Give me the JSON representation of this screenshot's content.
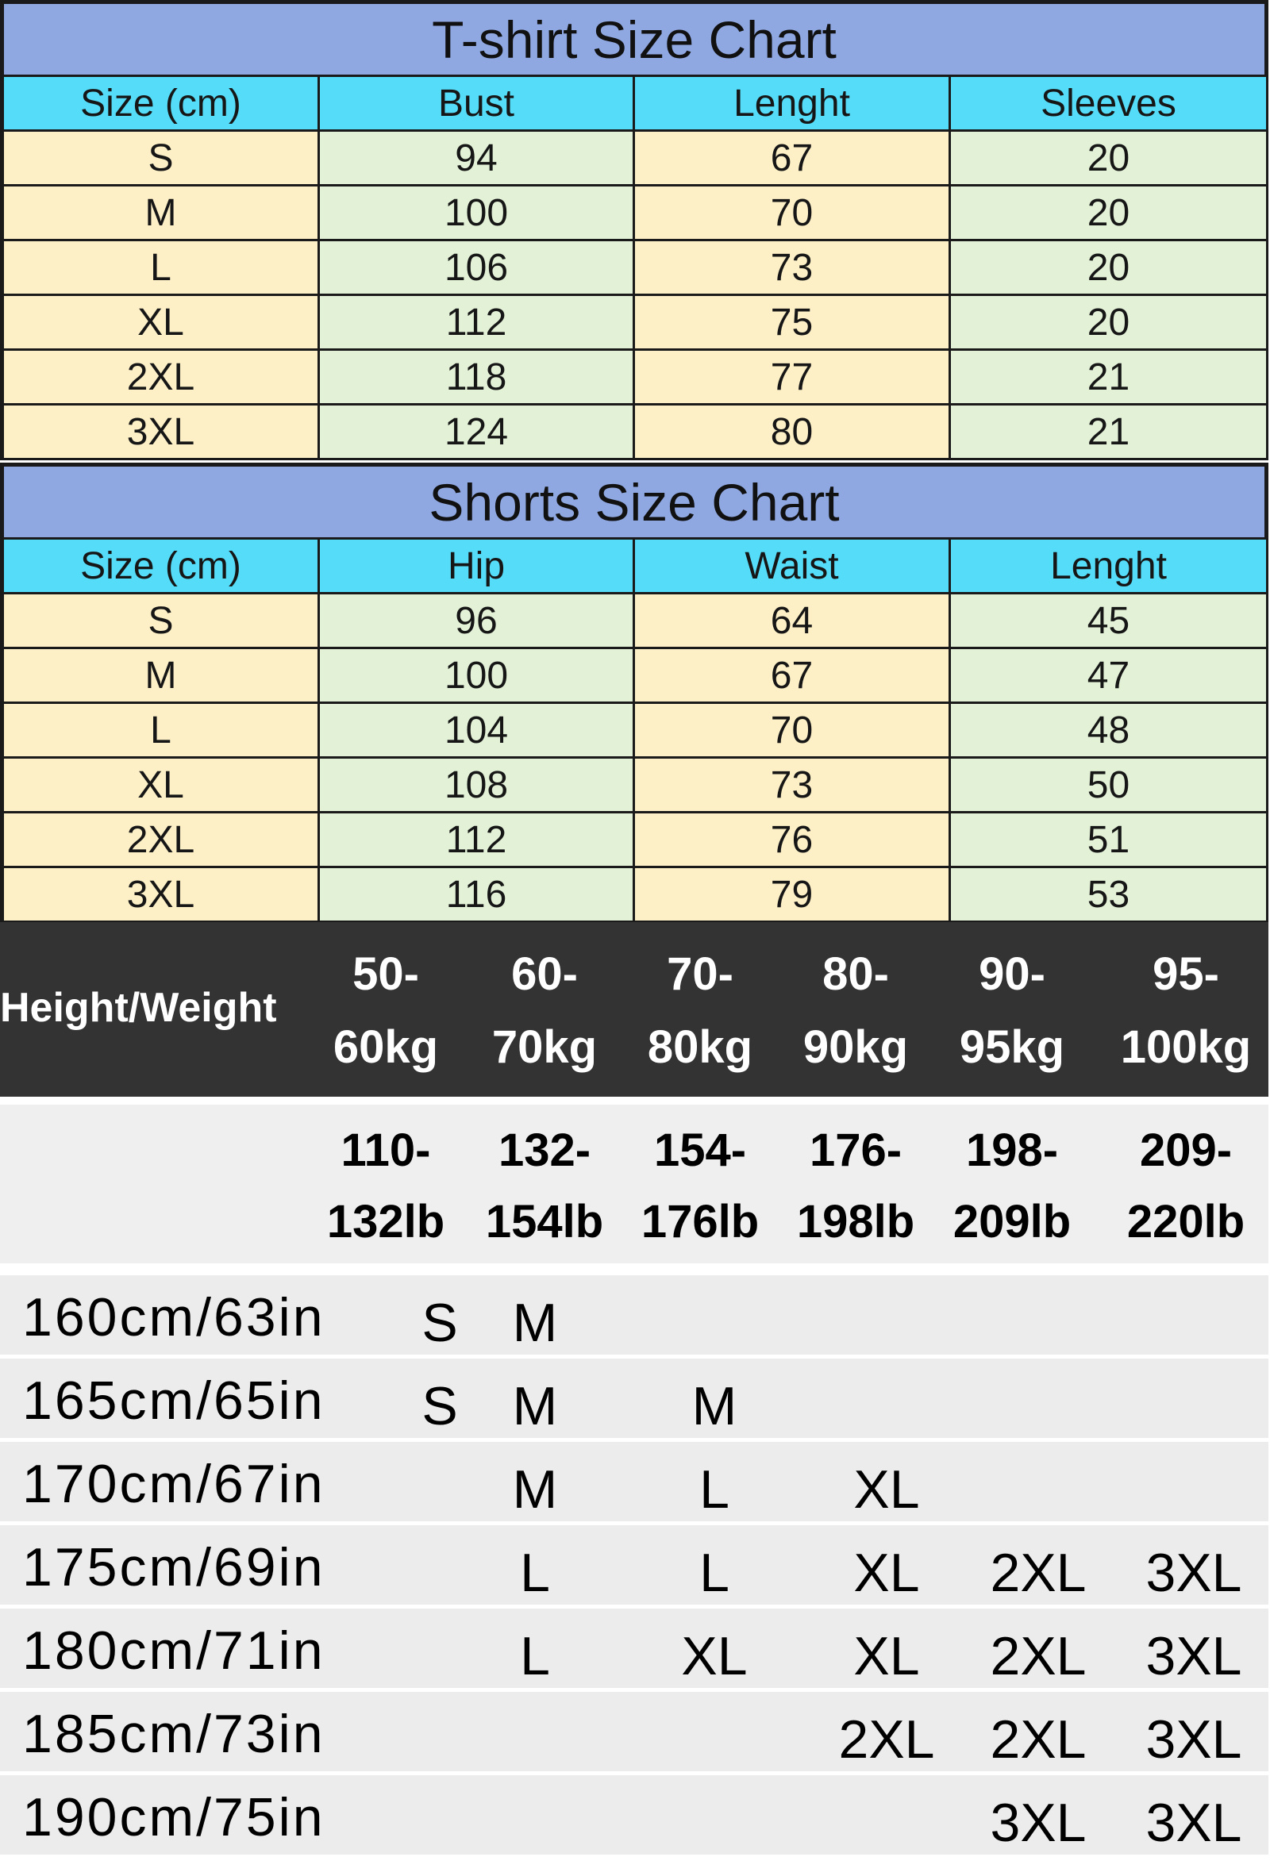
{
  "tshirt": {
    "title": "T-shirt Size Chart",
    "headers": [
      "Size  (cm)",
      "Bust",
      "Lenght",
      "Sleeves"
    ],
    "rows": [
      [
        "S",
        "94",
        "67",
        "20"
      ],
      [
        "M",
        "100",
        "70",
        "20"
      ],
      [
        "L",
        "106",
        "73",
        "20"
      ],
      [
        "XL",
        "112",
        "75",
        "20"
      ],
      [
        "2XL",
        "118",
        "77",
        "21"
      ],
      [
        "3XL",
        "124",
        "80",
        "21"
      ]
    ]
  },
  "shorts": {
    "title": "Shorts Size Chart",
    "headers": [
      "Size  (cm)",
      "Hip",
      "Waist",
      "Lenght"
    ],
    "rows": [
      [
        "S",
        "96",
        "64",
        "45"
      ],
      [
        "M",
        "100",
        "67",
        "47"
      ],
      [
        "L",
        "104",
        "70",
        "48"
      ],
      [
        "XL",
        "108",
        "73",
        "50"
      ],
      [
        "2XL",
        "112",
        "76",
        "51"
      ],
      [
        "3XL",
        "116",
        "79",
        "53"
      ]
    ]
  },
  "height_weight": {
    "corner_label": "Height/Weight",
    "kg_columns": [
      [
        "50-",
        "60kg"
      ],
      [
        "60-",
        "70kg"
      ],
      [
        "70-",
        "80kg"
      ],
      [
        "80-",
        "90kg"
      ],
      [
        "90-",
        "95kg"
      ],
      [
        "95-",
        "100kg"
      ]
    ],
    "lb_columns": [
      [
        "110-",
        "132lb"
      ],
      [
        "132-",
        "154lb"
      ],
      [
        "154-",
        "176lb"
      ],
      [
        "176-",
        "198lb"
      ],
      [
        "198-",
        "209lb"
      ],
      [
        "209-",
        "220lb"
      ]
    ],
    "rows": [
      {
        "height": "160cm/63in",
        "sizes": [
          "S",
          "M",
          "",
          "",
          "",
          ""
        ]
      },
      {
        "height": "165cm/65in",
        "sizes": [
          "S",
          "M",
          "M",
          "",
          "",
          ""
        ]
      },
      {
        "height": "170cm/67in",
        "sizes": [
          "",
          "M",
          "L",
          "XL",
          "",
          ""
        ]
      },
      {
        "height": "175cm/69in",
        "sizes": [
          "",
          "L",
          "L",
          "XL",
          "2XL",
          "3XL"
        ]
      },
      {
        "height": "180cm/71in",
        "sizes": [
          "",
          "L",
          "XL",
          "XL",
          "2XL",
          "3XL"
        ]
      },
      {
        "height": "185cm/73in",
        "sizes": [
          "",
          "",
          "",
          "2XL",
          "2XL",
          "3XL"
        ]
      },
      {
        "height": "190cm/75in",
        "sizes": [
          "",
          "",
          "",
          "",
          "3XL",
          "3XL"
        ]
      }
    ]
  },
  "colors": {
    "title_bg": "#8fa8e2",
    "header_bg": "#55dcf8",
    "size_col_bg": "#fdf0c6",
    "value_col_bg": "#e3f2d7",
    "weight_band_bg": "#333333"
  }
}
